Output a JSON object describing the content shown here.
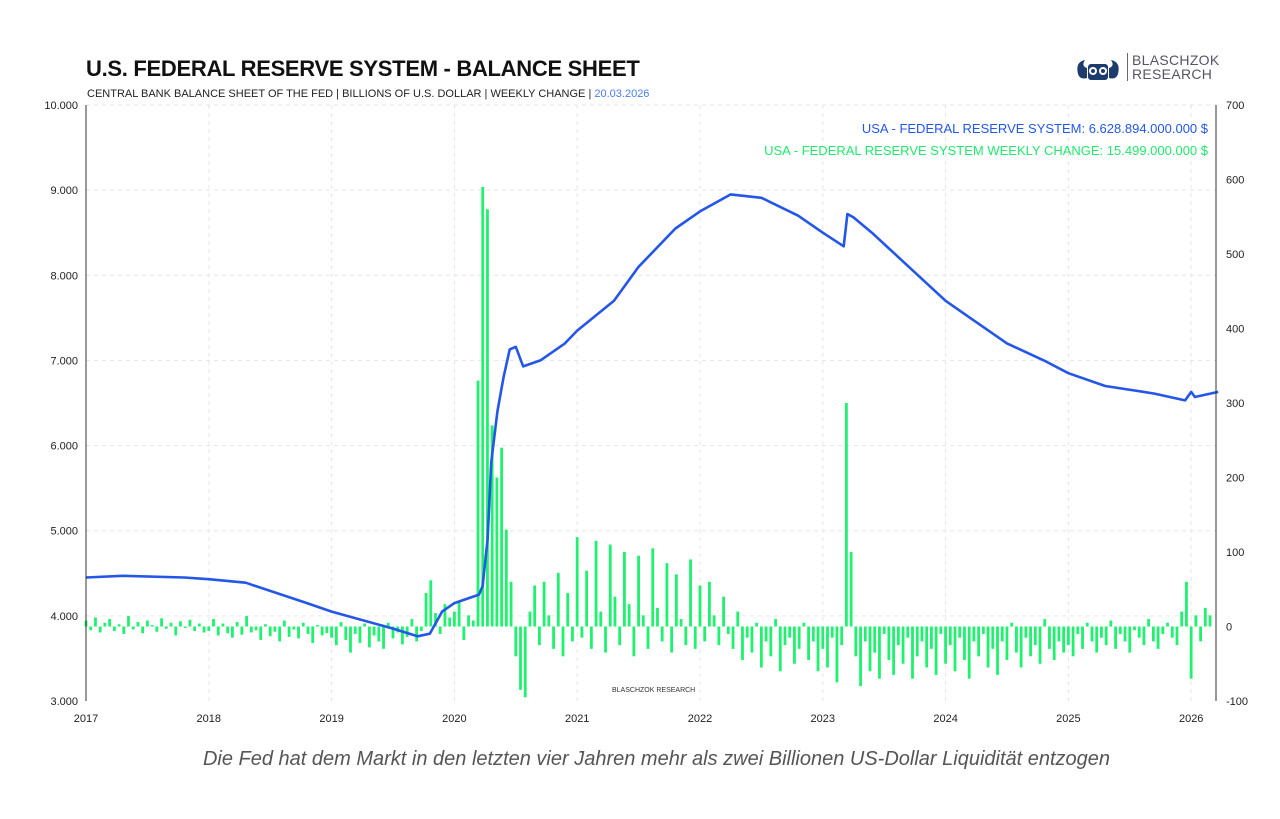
{
  "header": {
    "title": "U.S. FEDERAL RESERVE SYSTEM - BALANCE SHEET",
    "subtitle": "CENTRAL BANK BALANCE SHEET OF THE FED | BILLIONS OF U.S. DOLLAR | WEEKLY CHANGE |",
    "date": "20.03.2026"
  },
  "logo": {
    "line1": "BLASCHZOK",
    "line2": "RESEARCH"
  },
  "watermark": "BLASCHZOK  RESEARCH",
  "caption": "Die Fed hat dem Markt in den letzten vier Jahren mehr als zwei Billionen US-Dollar Liquidität entzogen",
  "colors": {
    "line": "#2456e8",
    "bars": "#1ef26e"
  },
  "chart_data": {
    "type": "line+bar",
    "title": "U.S. FEDERAL RESERVE SYSTEM - BALANCE SHEET",
    "legend": [
      "USA - FEDERAL RESERVE SYSTEM: 6.628.894.000.000 $",
      "USA - FEDERAL RESERVE SYSTEM WEEKLY CHANGE: 15.499.000.000 $"
    ],
    "legend_position": "top-right",
    "x_range": [
      2017,
      2026.2
    ],
    "x_ticks": [
      "2017",
      "2018",
      "2019",
      "2020",
      "2021",
      "2022",
      "2023",
      "2024",
      "2025",
      "2026"
    ],
    "y_left": {
      "range": [
        3000,
        10000
      ],
      "ticks": [
        "3.000",
        "4.000",
        "5.000",
        "6.000",
        "7.000",
        "8.000",
        "9.000",
        "10.000"
      ],
      "tick_values": [
        3000,
        4000,
        5000,
        6000,
        7000,
        8000,
        9000,
        10000
      ]
    },
    "y_right": {
      "range": [
        -100,
        700
      ],
      "ticks": [
        "-100",
        "0",
        "100",
        "200",
        "300",
        "400",
        "500",
        "600",
        "700"
      ],
      "tick_values": [
        -100,
        0,
        100,
        200,
        300,
        400,
        500,
        600,
        700
      ]
    },
    "balance_sheet": [
      [
        2017.0,
        4450
      ],
      [
        2017.3,
        4470
      ],
      [
        2017.8,
        4450
      ],
      [
        2018.0,
        4430
      ],
      [
        2018.3,
        4390
      ],
      [
        2018.8,
        4150
      ],
      [
        2019.0,
        4050
      ],
      [
        2019.5,
        3850
      ],
      [
        2019.7,
        3760
      ],
      [
        2019.8,
        3790
      ],
      [
        2019.9,
        4050
      ],
      [
        2020.0,
        4150
      ],
      [
        2020.2,
        4250
      ],
      [
        2020.23,
        4350
      ],
      [
        2020.27,
        4900
      ],
      [
        2020.3,
        5800
      ],
      [
        2020.35,
        6400
      ],
      [
        2020.4,
        6800
      ],
      [
        2020.45,
        7130
      ],
      [
        2020.5,
        7160
      ],
      [
        2020.56,
        6930
      ],
      [
        2020.7,
        7000
      ],
      [
        2020.9,
        7200
      ],
      [
        2021.0,
        7350
      ],
      [
        2021.3,
        7700
      ],
      [
        2021.5,
        8100
      ],
      [
        2021.8,
        8550
      ],
      [
        2022.0,
        8750
      ],
      [
        2022.25,
        8950
      ],
      [
        2022.5,
        8910
      ],
      [
        2022.8,
        8700
      ],
      [
        2023.0,
        8500
      ],
      [
        2023.17,
        8340
      ],
      [
        2023.2,
        8720
      ],
      [
        2023.25,
        8680
      ],
      [
        2023.4,
        8500
      ],
      [
        2023.7,
        8100
      ],
      [
        2024.0,
        7700
      ],
      [
        2024.2,
        7500
      ],
      [
        2024.5,
        7200
      ],
      [
        2024.8,
        7000
      ],
      [
        2025.0,
        6850
      ],
      [
        2025.3,
        6700
      ],
      [
        2025.7,
        6610
      ],
      [
        2025.95,
        6530
      ],
      [
        2026.0,
        6630
      ],
      [
        2026.03,
        6570
      ],
      [
        2026.22,
        6630
      ]
    ],
    "weekly_change_start": 2017.0,
    "weekly_change_step_years": 0.03846,
    "weekly_change": [
      8,
      -5,
      12,
      -8,
      5,
      10,
      -6,
      3,
      -10,
      14,
      -4,
      6,
      -9,
      8,
      2,
      -7,
      11,
      -3,
      5,
      -12,
      7,
      -2,
      9,
      -6,
      4,
      -8,
      -6,
      10,
      -12,
      4,
      -9,
      -15,
      6,
      -11,
      14,
      -8,
      -5,
      -18,
      3,
      -13,
      -7,
      -20,
      8,
      -14,
      -4,
      -16,
      5,
      -10,
      -22,
      2,
      -12,
      -9,
      -15,
      -25,
      6,
      -18,
      -35,
      -10,
      -22,
      4,
      -28,
      -12,
      -20,
      -30,
      5,
      -16,
      -8,
      -24,
      -14,
      10,
      -20,
      -6,
      45,
      62,
      18,
      -10,
      30,
      12,
      20,
      35,
      -18,
      15,
      8,
      330,
      590,
      560,
      270,
      200,
      240,
      130,
      60,
      -40,
      -85,
      -95,
      20,
      55,
      -25,
      60,
      15,
      -30,
      72,
      -40,
      45,
      -20,
      120,
      -15,
      75,
      -30,
      115,
      20,
      -35,
      110,
      40,
      -25,
      100,
      30,
      -40,
      95,
      15,
      -30,
      105,
      25,
      -20,
      85,
      -35,
      70,
      10,
      -25,
      90,
      -30,
      55,
      -20,
      60,
      15,
      -25,
      40,
      -10,
      -30,
      20,
      -45,
      -15,
      -35,
      5,
      -55,
      -20,
      -40,
      10,
      -60,
      -25,
      -15,
      -50,
      -30,
      5,
      -45,
      -20,
      -60,
      -30,
      -55,
      -15,
      -75,
      -25,
      300,
      100,
      -40,
      -80,
      -20,
      -60,
      -35,
      -70,
      -10,
      -45,
      -65,
      -25,
      -50,
      -15,
      -70,
      -40,
      -20,
      -55,
      -30,
      -65,
      -10,
      -50,
      -25,
      -60,
      -15,
      -45,
      -70,
      -20,
      -40,
      -10,
      -55,
      -30,
      -65,
      -20,
      -45,
      5,
      -35,
      -55,
      -15,
      -40,
      -25,
      -50,
      10,
      -30,
      -45,
      -20,
      -35,
      -25,
      -40,
      -10,
      -30,
      5,
      -20,
      -35,
      -15,
      -25,
      8,
      -30,
      -10,
      -20,
      -35,
      -5,
      -15,
      -25,
      10,
      -20,
      -30,
      -10,
      5,
      -15,
      -25,
      20,
      60,
      -70,
      15,
      -20,
      25,
      15
    ]
  }
}
